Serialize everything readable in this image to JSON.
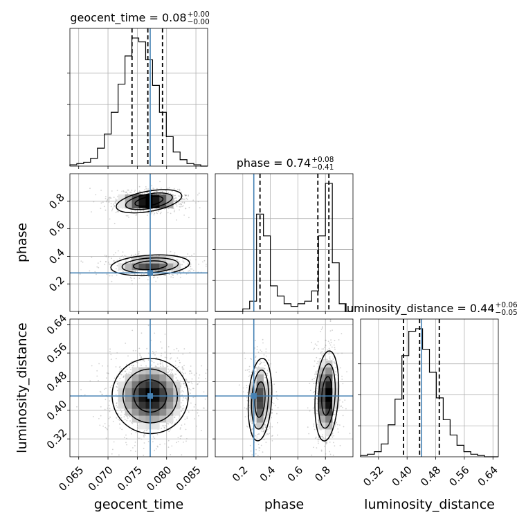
{
  "chart_data": {
    "type": "corner",
    "parameters": [
      {
        "name": "geocent_time",
        "label": "geocent_time",
        "range": [
          0.0635,
          0.087
        ],
        "ticks": [
          0.065,
          0.07,
          0.075,
          0.08,
          0.085
        ],
        "tick_labels": [
          "0.065",
          "0.070",
          "0.075",
          "0.080",
          "0.085"
        ],
        "truth": 0.0772,
        "quantiles": [
          0.0741,
          0.0768,
          0.0793
        ],
        "title": {
          "main": "geocent_time = 0.08",
          "sup": "+0.00",
          "sub": "−0.00"
        },
        "hist": {
          "range": [
            0.0635,
            0.087
          ],
          "counts": [
            0.01,
            0.02,
            0.03,
            0.06,
            0.14,
            0.25,
            0.42,
            0.64,
            0.86,
            1.0,
            0.97,
            0.83,
            0.63,
            0.42,
            0.23,
            0.11,
            0.05,
            0.02,
            0.01,
            0.0
          ]
        }
      },
      {
        "name": "phase",
        "label": "phase",
        "range": [
          0.0,
          1.0
        ],
        "ticks": [
          0.2,
          0.4,
          0.6,
          0.8
        ],
        "tick_labels": [
          "0.2",
          "0.4",
          "0.6",
          "0.8"
        ],
        "truth": 0.28,
        "quantiles": [
          0.325,
          0.745,
          0.825
        ],
        "title": {
          "main": "phase = 0.74",
          "sup": "+0.08",
          "sub": "−0.41"
        },
        "hist": {
          "range": [
            0.0,
            1.0
          ],
          "counts": [
            0.0,
            0.0,
            0.0,
            0.0,
            0.02,
            0.08,
            0.76,
            0.59,
            0.2,
            0.12,
            0.06,
            0.04,
            0.06,
            0.08,
            0.16,
            0.59,
            1.0,
            0.38,
            0.06,
            0.0
          ]
        }
      },
      {
        "name": "luminosity_distance",
        "label": "luminosity_distance",
        "range": [
          0.27,
          0.655
        ],
        "ticks": [
          0.32,
          0.4,
          0.48,
          0.56,
          0.64
        ],
        "tick_labels": [
          "0.32",
          "0.40",
          "0.48",
          "0.56",
          "0.64"
        ],
        "truth": 0.44,
        "quantiles": [
          0.39,
          0.435,
          0.49
        ],
        "title": {
          "main": "luminosity_distance = 0.44",
          "sup": "+0.06",
          "sub": "−0.05"
        },
        "hist": {
          "range": [
            0.27,
            0.655
          ],
          "counts": [
            0.01,
            0.02,
            0.04,
            0.1,
            0.25,
            0.45,
            0.79,
            0.98,
            1.0,
            0.84,
            0.66,
            0.46,
            0.29,
            0.17,
            0.09,
            0.04,
            0.02,
            0.01,
            0.0,
            0.0
          ]
        }
      }
    ],
    "joint_2d": [
      {
        "x": "geocent_time",
        "y": "phase",
        "modes": [
          {
            "cx": 0.077,
            "cy": 0.8,
            "sx": 0.0027,
            "sy": 0.035,
            "w": 0.62,
            "rot": 0.3
          },
          {
            "cx": 0.0772,
            "cy": 0.335,
            "sx": 0.0032,
            "sy": 0.035,
            "w": 0.38,
            "rot": 0.1
          }
        ]
      },
      {
        "x": "geocent_time",
        "y": "luminosity_distance",
        "modes": [
          {
            "cx": 0.0772,
            "cy": 0.44,
            "sx": 0.0031,
            "sy": 0.05,
            "w": 1.0,
            "rot": -0.55
          }
        ]
      },
      {
        "x": "phase",
        "y": "luminosity_distance",
        "modes": [
          {
            "cx": 0.325,
            "cy": 0.43,
            "sx": 0.04,
            "sy": 0.055,
            "w": 0.42,
            "rot": -0.1
          },
          {
            "cx": 0.81,
            "cy": 0.44,
            "sx": 0.04,
            "sy": 0.06,
            "w": 0.58,
            "rot": -0.1
          }
        ]
      }
    ],
    "grid": true,
    "colors": {
      "truth": "#4682b4",
      "hist": "#000000",
      "quantile": "#000000",
      "grid": "#b0b0b0",
      "samples": "#9a9a9a"
    }
  }
}
